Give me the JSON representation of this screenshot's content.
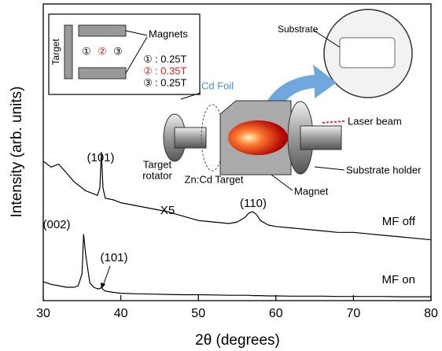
{
  "chart_data": {
    "type": "line",
    "x_label": "2θ (degrees)",
    "y_label": "Intensity (arb. units)",
    "x": [
      30,
      31,
      32,
      33,
      34,
      34.5,
      35,
      35.2,
      35.5,
      36,
      36.5,
      37,
      37.3,
      37.5,
      37.7,
      38,
      39,
      40,
      42,
      44,
      46,
      48,
      50,
      52,
      54,
      55,
      56,
      56.5,
      57,
      57.5,
      58,
      59,
      60,
      62,
      64,
      66,
      68,
      70,
      72,
      74,
      76,
      78,
      80
    ],
    "series": [
      {
        "name": "MF off",
        "color": "#000000",
        "values": [
          47,
          45,
          46,
          43,
          40,
          39,
          38,
          37.5,
          37,
          36.5,
          36,
          35.5,
          38,
          50,
          38,
          34.5,
          34,
          33,
          32,
          31,
          30,
          28.5,
          27,
          26.5,
          26,
          26.5,
          28,
          29.5,
          30,
          29,
          27,
          25.5,
          25,
          24.5,
          24,
          23.5,
          23,
          23,
          22.5,
          22,
          21.5,
          21,
          20.5
        ]
      },
      {
        "name": "MF on",
        "color": "#000000",
        "values": [
          6.4,
          5.5,
          5,
          4.5,
          4.5,
          5,
          9,
          22.3,
          15,
          6,
          4.5,
          4,
          4,
          4.5,
          3.8,
          3.2,
          2.8,
          2.5,
          2.3,
          2.2,
          2.1,
          2,
          2,
          1.9,
          1.8,
          1.8,
          1.8,
          1.8,
          1.7,
          1.7,
          1.7,
          1.6,
          1.6,
          1.5,
          1.5,
          1.5,
          1.4,
          1.4,
          1.4,
          1.4,
          1.3,
          1.3,
          1.3
        ]
      }
    ],
    "annotations": [
      "(101)",
      "X5",
      "(110)",
      "(002)",
      "(101)"
    ],
    "xlim": [
      30,
      80
    ],
    "xticks": [
      30,
      40,
      50,
      60,
      70,
      80
    ],
    "ylim": [
      0,
      100
    ]
  },
  "schematic": {
    "inset_labels": [
      "Target",
      "Magnets",
      "①",
      "②",
      "③",
      "①",
      ": 0.25T",
      "②",
      ": 0.35T",
      "③",
      ": 0.25T"
    ],
    "labels": [
      "Substrate",
      "Cd Foil",
      "Laser beam",
      "Target",
      "rotator",
      "Zn:Cd Target",
      "Substrate holder",
      "Magnet"
    ]
  }
}
